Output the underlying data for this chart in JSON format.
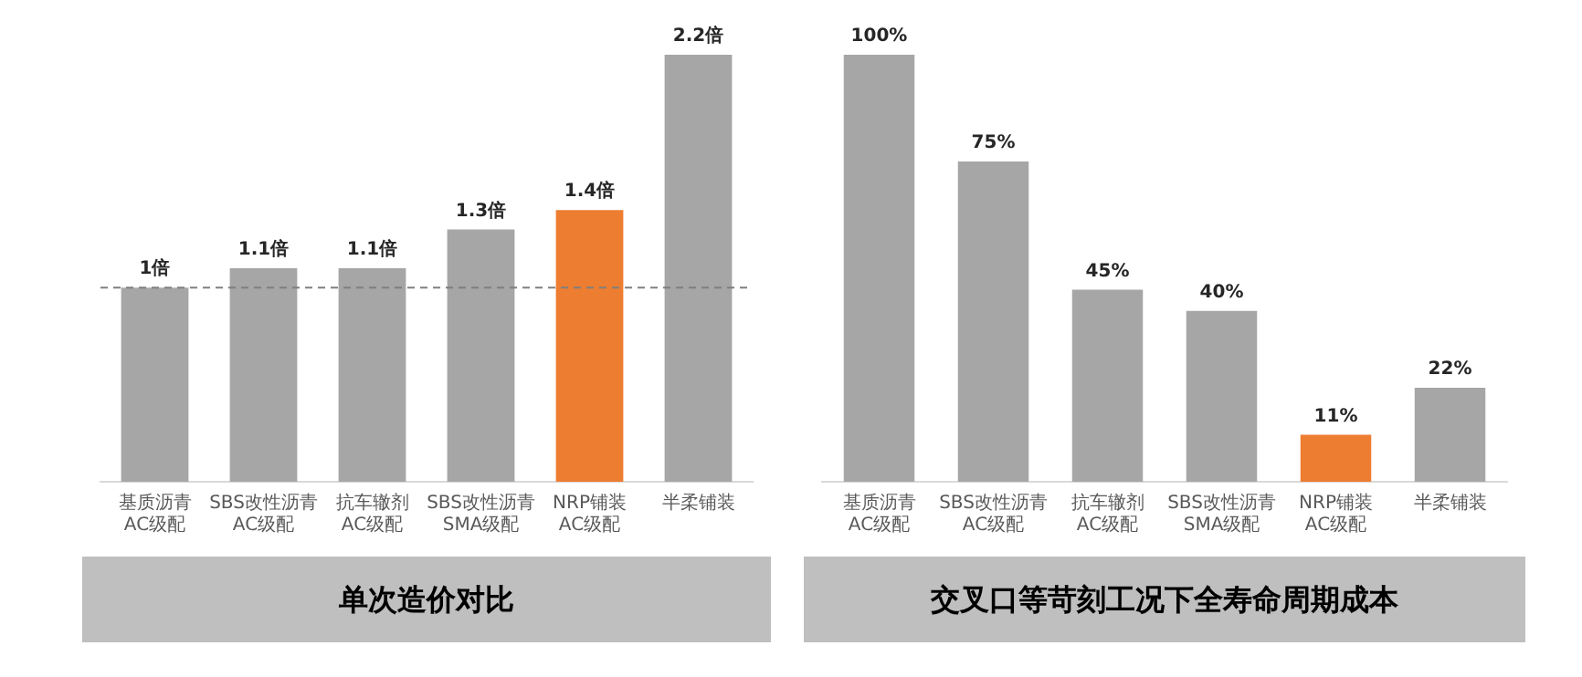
{
  "chart_data": [
    {
      "type": "bar",
      "title": "单次造价对比",
      "categories": [
        "基质沥青\nAC级配",
        "SBS改性沥青\nAC级配",
        "抗车辙剂\nAC级配",
        "SBS改性沥青\nSMA级配",
        "NRP铺装\nAC级配",
        "半柔铺装"
      ],
      "values": [
        1,
        1.1,
        1.1,
        1.3,
        1.4,
        2.2
      ],
      "value_labels": [
        "1倍",
        "1.1倍",
        "1.1倍",
        "1.3倍",
        "1.4倍",
        "2.2倍"
      ],
      "colors": [
        "#a6a6a6",
        "#a6a6a6",
        "#a6a6a6",
        "#a6a6a6",
        "#ed7d31",
        "#a6a6a6"
      ],
      "ylim": [
        0,
        2.2
      ],
      "tick_labels": "x",
      "grid": false,
      "legend": false,
      "ref_lines": [
        {
          "axis": "y",
          "value": 1,
          "color": "#7f7f7f",
          "line_style": "dashed"
        }
      ]
    },
    {
      "type": "bar",
      "title": "交叉口等苛刻工况下全寿命周期成本",
      "categories": [
        "基质沥青\nAC级配",
        "SBS改性沥青\nAC级配",
        "抗车辙剂\nAC级配",
        "SBS改性沥青\nSMA级配",
        "NRP铺装\nAC级配",
        "半柔铺装"
      ],
      "values": [
        100,
        75,
        45,
        40,
        11,
        22
      ],
      "value_labels": [
        "100%",
        "75%",
        "45%",
        "40%",
        "11%",
        "22%"
      ],
      "colors": [
        "#a6a6a6",
        "#a6a6a6",
        "#a6a6a6",
        "#a6a6a6",
        "#ed7d31",
        "#a6a6a6"
      ],
      "ylim": [
        0,
        100
      ],
      "tick_labels": "x",
      "grid": false,
      "legend": false
    }
  ]
}
